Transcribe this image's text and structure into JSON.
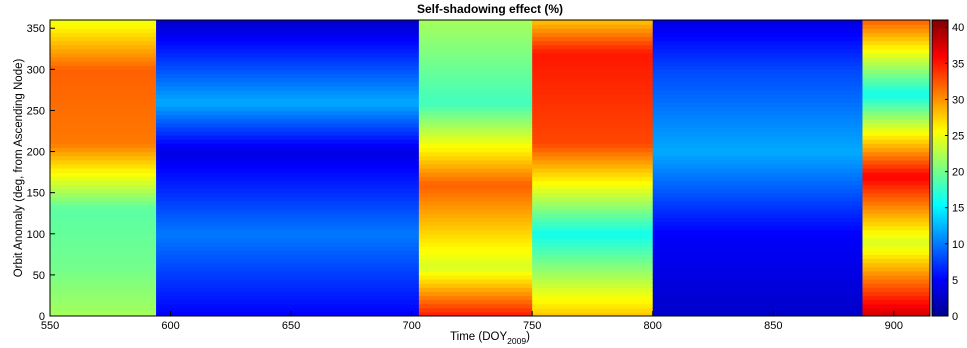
{
  "chart_data": {
    "type": "heatmap",
    "title": "Self-shadowing effect (%)",
    "xlabel": "Time (DOY",
    "xlabel_subscript": "2009",
    "xlabel_suffix": ")",
    "ylabel": "Orbit Anomaly (deg, from Ascending Node)",
    "xlim": [
      550,
      915
    ],
    "ylim": [
      0,
      360
    ],
    "clim": [
      0,
      41
    ],
    "colormap": "jet",
    "x_ticks": [
      550,
      600,
      650,
      700,
      750,
      800,
      850,
      900
    ],
    "y_ticks": [
      0,
      50,
      100,
      150,
      200,
      250,
      300,
      350
    ],
    "colorbar_ticks": [
      0,
      5,
      10,
      15,
      20,
      25,
      30,
      35,
      40
    ],
    "segments": [
      {
        "x_start": 550,
        "x_end": 594,
        "profile": [
          {
            "anomaly": 0,
            "value": 22
          },
          {
            "anomaly": 60,
            "value": 20
          },
          {
            "anomaly": 130,
            "value": 19
          },
          {
            "anomaly": 210,
            "value": 31
          },
          {
            "anomaly": 300,
            "value": 32
          },
          {
            "anomaly": 360,
            "value": 25
          }
        ]
      },
      {
        "x_start": 594,
        "x_end": 703,
        "profile": [
          {
            "anomaly": 0,
            "value": 5
          },
          {
            "anomaly": 100,
            "value": 10
          },
          {
            "anomaly": 200,
            "value": 4
          },
          {
            "anomaly": 260,
            "value": 12
          },
          {
            "anomaly": 360,
            "value": 3
          }
        ]
      },
      {
        "x_start": 703,
        "x_end": 750,
        "profile": [
          {
            "anomaly": 0,
            "value": 35
          },
          {
            "anomaly": 60,
            "value": 24
          },
          {
            "anomaly": 160,
            "value": 32
          },
          {
            "anomaly": 260,
            "value": 18
          },
          {
            "anomaly": 360,
            "value": 22
          }
        ]
      },
      {
        "x_start": 750,
        "x_end": 800,
        "profile": [
          {
            "anomaly": 0,
            "value": 28
          },
          {
            "anomaly": 100,
            "value": 16
          },
          {
            "anomaly": 210,
            "value": 33
          },
          {
            "anomaly": 320,
            "value": 35
          },
          {
            "anomaly": 360,
            "value": 28
          }
        ]
      },
      {
        "x_start": 800,
        "x_end": 887,
        "profile": [
          {
            "anomaly": 0,
            "value": 3
          },
          {
            "anomaly": 100,
            "value": 5
          },
          {
            "anomaly": 200,
            "value": 12
          },
          {
            "anomaly": 300,
            "value": 8
          },
          {
            "anomaly": 360,
            "value": 4
          }
        ]
      },
      {
        "x_start": 887,
        "x_end": 915,
        "profile": [
          {
            "anomaly": 0,
            "value": 38
          },
          {
            "anomaly": 90,
            "value": 24
          },
          {
            "anomaly": 170,
            "value": 36
          },
          {
            "anomaly": 270,
            "value": 16
          },
          {
            "anomaly": 360,
            "value": 32
          }
        ]
      }
    ]
  }
}
